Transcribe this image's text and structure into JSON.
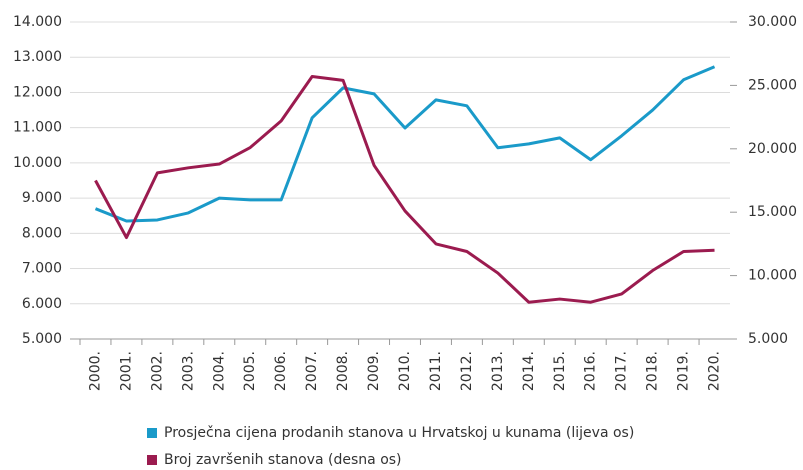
{
  "chart_data": {
    "type": "line",
    "categories": [
      "2000.",
      "2001.",
      "2002.",
      "2003.",
      "2004.",
      "2005.",
      "2006.",
      "2007.",
      "2008.",
      "2009.",
      "2010.",
      "2011.",
      "2012.",
      "2013.",
      "2014.",
      "2015.",
      "2016.",
      "2017.",
      "2018.",
      "2019.",
      "2020."
    ],
    "series": [
      {
        "name": "Prosječna cijena prodanih stanova u Hrvatskoj u kunama (lijeva os)",
        "color": "#1a9ac9",
        "axis": "y",
        "values": [
          8700,
          8350,
          8380,
          8580,
          9000,
          8950,
          8950,
          11280,
          12130,
          11960,
          10990,
          11790,
          11620,
          10430,
          10540,
          10710,
          10090,
          10770,
          11500,
          12360,
          12730
        ]
      },
      {
        "name": "Broj završenih stanova (desna os)",
        "color": "#9b1b4f",
        "axis": "y2",
        "values": [
          17500,
          13000,
          18100,
          18500,
          18800,
          20100,
          22200,
          25700,
          25400,
          18700,
          15100,
          12500,
          11900,
          10200,
          7900,
          8150,
          7900,
          8550,
          10400,
          11900,
          12000
        ]
      }
    ],
    "ylim": [
      5000,
      14000
    ],
    "yticks": [
      {
        "value": 5000,
        "label": "5.000"
      },
      {
        "value": 6000,
        "label": "6.000"
      },
      {
        "value": 7000,
        "label": "7.000"
      },
      {
        "value": 8000,
        "label": "8.000"
      },
      {
        "value": 9000,
        "label": "9.000"
      },
      {
        "value": 10000,
        "label": "10.000"
      },
      {
        "value": 11000,
        "label": "11.000"
      },
      {
        "value": 12000,
        "label": "12.000"
      },
      {
        "value": 13000,
        "label": "13.000"
      },
      {
        "value": 14000,
        "label": "14.000"
      }
    ],
    "y2lim": [
      5000,
      30000
    ],
    "y2ticks": [
      {
        "value": 5000,
        "label": "5.000"
      },
      {
        "value": 10000,
        "label": "10.000"
      },
      {
        "value": 15000,
        "label": "15.000"
      },
      {
        "value": 20000,
        "label": "20.000"
      },
      {
        "value": 25000,
        "label": "25.000"
      },
      {
        "value": 30000,
        "label": "30.000"
      }
    ],
    "grid": true,
    "legend": "bottom"
  }
}
